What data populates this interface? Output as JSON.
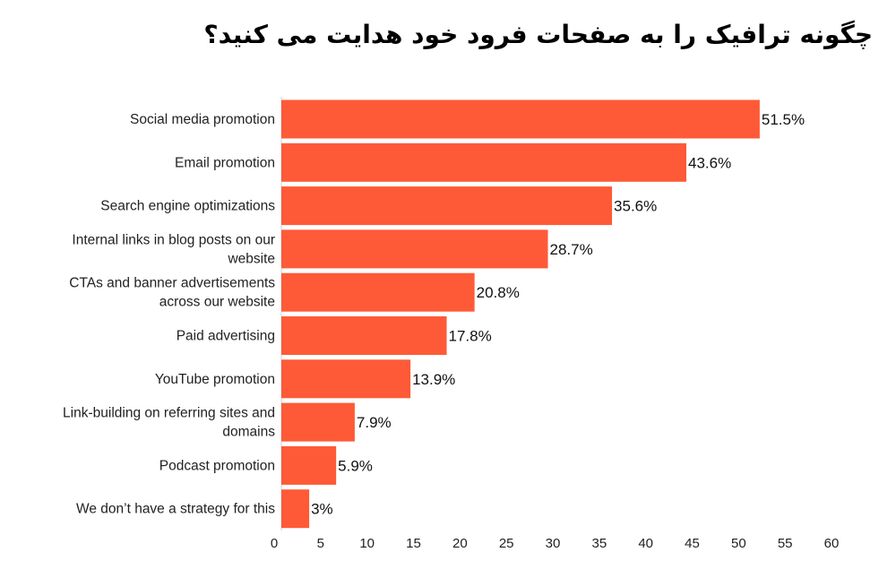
{
  "chart_data": {
    "type": "bar",
    "orientation": "horizontal",
    "title": "چگونه ترافیک را به صفحات فرود خود هدایت می کنید؟",
    "categories": [
      [
        "Social media promotion"
      ],
      [
        "Email promotion"
      ],
      [
        "Search engine optimizations"
      ],
      [
        "Internal links in blog posts on our",
        "website"
      ],
      [
        "CTAs and banner advertisements",
        "across our website"
      ],
      [
        "Paid advertising"
      ],
      [
        "YouTube promotion"
      ],
      [
        "Link-building on referring sites and",
        "domains"
      ],
      [
        "Podcast promotion"
      ],
      [
        "We don’t have a strategy for this"
      ]
    ],
    "values": [
      51.5,
      43.6,
      35.6,
      28.7,
      20.8,
      17.8,
      13.9,
      7.9,
      5.9,
      3
    ],
    "value_labels": [
      "51.5%",
      "43.6%",
      "35.6%",
      "28.7%",
      "20.8%",
      "17.8%",
      "13.9%",
      "7.9%",
      "5.9%",
      "3%"
    ],
    "xlim": [
      0,
      60
    ],
    "xticks": [
      0,
      5,
      10,
      15,
      20,
      25,
      30,
      35,
      40,
      45,
      50,
      55,
      60
    ],
    "grid": false,
    "bar_color": "#fe5a37",
    "xlabel": "",
    "ylabel": ""
  }
}
